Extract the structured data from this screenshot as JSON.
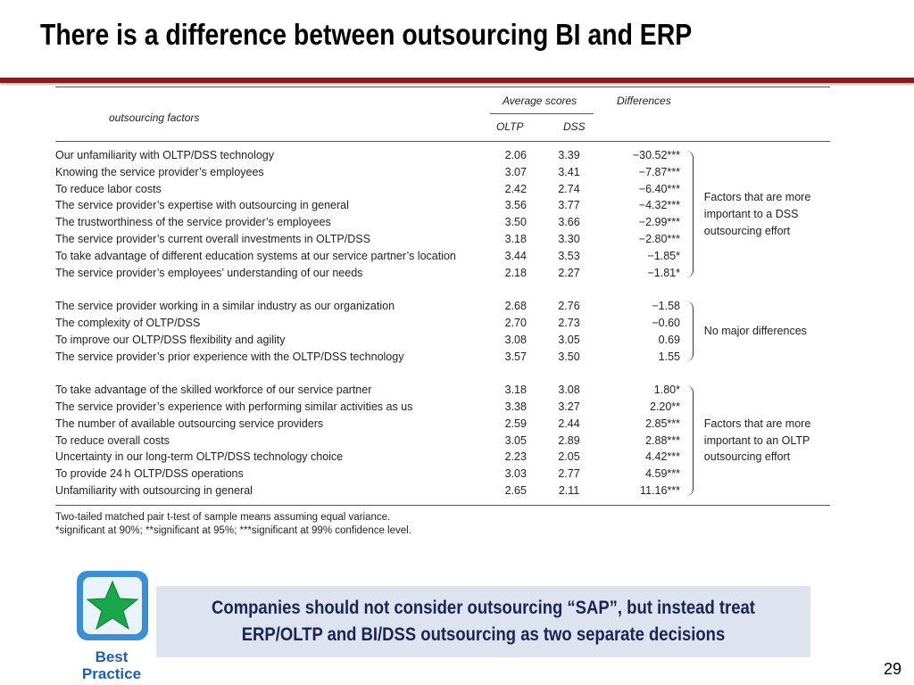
{
  "title": "There is a difference between outsourcing BI and ERP",
  "table": {
    "header": {
      "factors": "outsourcing factors",
      "average": "Average scores",
      "oltp": "OLTP",
      "dss": "DSS",
      "differences": "Differences"
    },
    "groups": [
      {
        "label": "Factors that are more important to a DSS outsourcing effort",
        "rows": [
          [
            "Our unfamiliarity with OLTP/DSS technology",
            "2.06",
            "3.39",
            "−30.52***"
          ],
          [
            "Knowing the service provider’s employees",
            "3.07",
            "3.41",
            "−7.87***"
          ],
          [
            "To reduce labor costs",
            "2.42",
            "2.74",
            "−6.40***"
          ],
          [
            "The service provider’s expertise with outsourcing in general",
            "3.56",
            "3.77",
            "−4.32***"
          ],
          [
            "The trustworthiness of the service provider’s employees",
            "3.50",
            "3.66",
            "−2.99***"
          ],
          [
            "The service provider’s current overall investments in OLTP/DSS",
            "3.18",
            "3.30",
            "−2.80***"
          ],
          [
            "To take advantage of different education systems at our service partner’s location",
            "3.44",
            "3.53",
            "−1.85*"
          ],
          [
            "The service provider’s employees’ understanding of our needs",
            "2.18",
            "2.27",
            "−1.81*"
          ]
        ]
      },
      {
        "label": "No major differences",
        "rows": [
          [
            "The service provider working in a similar industry as our organization",
            "2.68",
            "2.76",
            "−1.58"
          ],
          [
            "The complexity of OLTP/DSS",
            "2.70",
            "2.73",
            "−0.60"
          ],
          [
            "To improve our OLTP/DSS flexibility and agility",
            "3.08",
            "3.05",
            "0.69"
          ],
          [
            "The service provider’s prior experience with the OLTP/DSS technology",
            "3.57",
            "3.50",
            "1.55"
          ]
        ]
      },
      {
        "label": "Factors that are more important to an OLTP outsourcing effort",
        "rows": [
          [
            "To take advantage of the skilled workforce of our service partner",
            "3.18",
            "3.08",
            "1.80*"
          ],
          [
            "The service provider’s experience with performing similar activities as us",
            "3.38",
            "3.27",
            "2.20**"
          ],
          [
            "The number of available outsourcing service providers",
            "2.59",
            "2.44",
            "2.85***"
          ],
          [
            "To reduce overall costs",
            "3.05",
            "2.89",
            "2.88***"
          ],
          [
            "Uncertainty in our long-term OLTP/DSS technology choice",
            "2.23",
            "2.05",
            "4.42***"
          ],
          [
            "To provide 24 h OLTP/DSS operations",
            "3.03",
            "2.77",
            "4.59***"
          ],
          [
            "Unfamiliarity with outsourcing in general",
            "2.65",
            "2.11",
            "11.16***"
          ]
        ]
      }
    ],
    "notes": [
      "Two-tailed matched pair t-test of sample means assuming equal variance.",
      "*significant at 90%; **significant at 95%; ***significant at 99% confidence level."
    ]
  },
  "callout": "Companies should not consider outsourcing “SAP”, but instead treat ERP/OLTP and BI/DSS outsourcing as two separate decisions",
  "badge": {
    "line1": "Best",
    "line2": "Practice"
  },
  "page_number": "29"
}
